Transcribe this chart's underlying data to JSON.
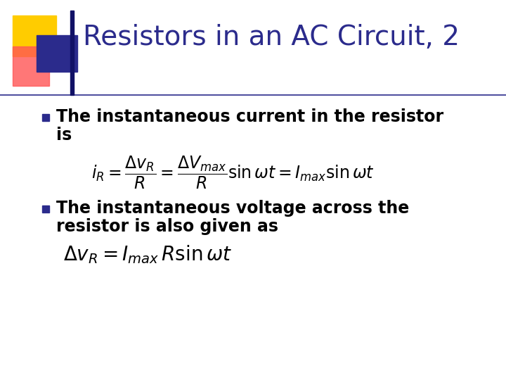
{
  "title": "Resistors in an AC Circuit, 2",
  "title_color": "#2B2B8C",
  "title_fontsize": 28,
  "background_color": "#FFFFFF",
  "bullet_color": "#2B2B8C",
  "bullet1_line1": "The instantaneous current in the resistor",
  "bullet1_line2": "is",
  "bullet2_line1": "The instantaneous voltage across the",
  "bullet2_line2": "resistor is also given as",
  "text_color": "#000000",
  "text_fontsize": 17,
  "accent_yellow": "#FFCC00",
  "accent_red": "#FF5555",
  "accent_blue": "#2B2B8C",
  "line_color": "#2B2B8C",
  "eq1": "$i_R = \\dfrac{\\Delta v_R}{R} = \\dfrac{\\Delta V_{max}}{R} \\sin \\omega t = I_{max} \\sin \\omega t$",
  "eq2": "$\\Delta v_R = I_{max}\\, R \\sin \\omega t$",
  "eq_fontsize": 17
}
